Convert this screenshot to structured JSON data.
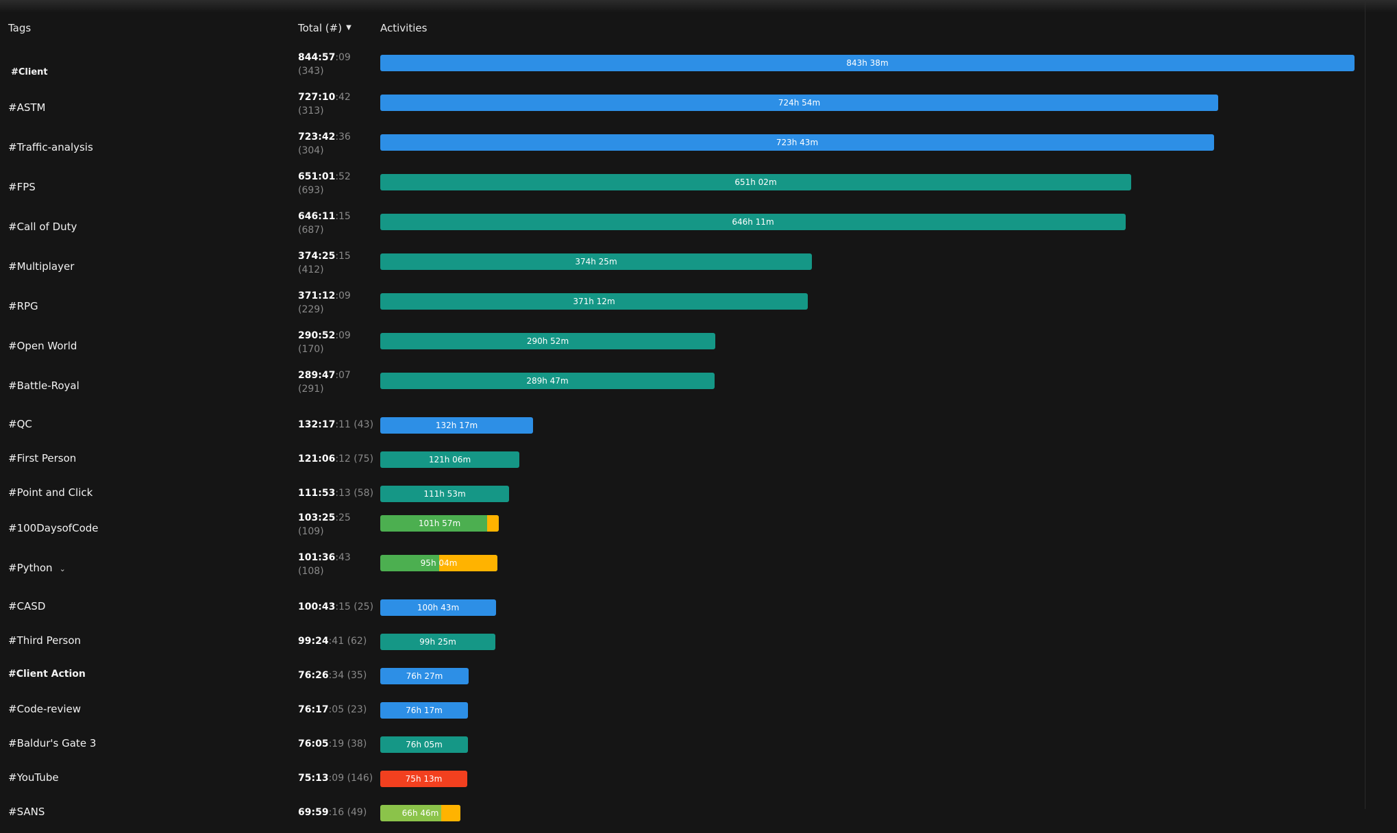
{
  "header": {
    "tags": "Tags",
    "total": "Total (#)",
    "activities": "Activities"
  },
  "colors": {
    "blue": "#2d8fe6",
    "teal": "#159786",
    "green": "#4caf50",
    "lime": "#8bc34a",
    "red": "#f2401f",
    "orange": "#ffb300"
  },
  "rows": [
    {
      "tag": "#Client",
      "hm": "844:57",
      "sec": ":09",
      "count": "(343)",
      "bar": "843h 38m",
      "fraction": 1.0,
      "color": "blue",
      "twoLine": true,
      "redacted": true
    },
    {
      "tag": "#ASTM",
      "hm": "727:10",
      "sec": ":42",
      "count": "(313)",
      "bar": "724h 54m",
      "fraction": 0.86,
      "color": "blue",
      "twoLine": true
    },
    {
      "tag": "#Traffic-analysis",
      "hm": "723:42",
      "sec": ":36",
      "count": "(304)",
      "bar": "723h 43m",
      "fraction": 0.856,
      "color": "blue",
      "twoLine": true
    },
    {
      "tag": "#FPS",
      "hm": "651:01",
      "sec": ":52",
      "count": "(693)",
      "bar": "651h 02m",
      "fraction": 0.771,
      "color": "teal",
      "twoLine": true
    },
    {
      "tag": "#Call of Duty",
      "hm": "646:11",
      "sec": ":15",
      "count": "(687)",
      "bar": "646h 11m",
      "fraction": 0.765,
      "color": "teal",
      "twoLine": true
    },
    {
      "tag": "#Multiplayer",
      "hm": "374:25",
      "sec": ":15",
      "count": "(412)",
      "bar": "374h 25m",
      "fraction": 0.443,
      "color": "teal",
      "twoLine": true
    },
    {
      "tag": "#RPG",
      "hm": "371:12",
      "sec": ":09",
      "count": "(229)",
      "bar": "371h 12m",
      "fraction": 0.439,
      "color": "teal",
      "twoLine": true
    },
    {
      "tag": "#Open World",
      "hm": "290:52",
      "sec": ":09",
      "count": "(170)",
      "bar": "290h 52m",
      "fraction": 0.344,
      "color": "teal",
      "twoLine": true
    },
    {
      "tag": "#Battle-Royal",
      "hm": "289:47",
      "sec": ":07",
      "count": "(291)",
      "bar": "289h 47m",
      "fraction": 0.343,
      "color": "teal",
      "twoLine": true
    },
    {
      "tag": "#QC",
      "hm": "132:17",
      "sec": ":11",
      "count": "(43)",
      "bar": "132h 17m",
      "fraction": 0.157,
      "color": "blue",
      "twoLine": false
    },
    {
      "tag": "#First Person",
      "hm": "121:06",
      "sec": ":12",
      "count": "(75)",
      "bar": "121h 06m",
      "fraction": 0.143,
      "color": "teal",
      "twoLine": false
    },
    {
      "tag": "#Point and Click",
      "hm": "111:53",
      "sec": ":13",
      "count": "(58)",
      "bar": "111h 53m",
      "fraction": 0.132,
      "color": "teal",
      "twoLine": false
    },
    {
      "tag": "#100DaysofCode",
      "hm": "103:25",
      "sec": ":25",
      "count": "(109)",
      "bar": "101h 57m",
      "fraction": 0.122,
      "color": "green",
      "twoLine": true,
      "stripe": "orange",
      "stripeFraction": 0.012
    },
    {
      "tag": "#Python",
      "hm": "101:36",
      "sec": ":43",
      "count": "(108)",
      "bar": "95h 04m",
      "fraction": 0.12,
      "color": "green",
      "twoLine": true,
      "stripe": "orange",
      "stripeFraction": 0.06,
      "chevron": "⌄"
    },
    {
      "tag": "#CASD",
      "hm": "100:43",
      "sec": ":15",
      "count": "(25)",
      "bar": "100h 43m",
      "fraction": 0.119,
      "color": "blue",
      "twoLine": false
    },
    {
      "tag": "#Third Person",
      "hm": "99:24",
      "sec": ":41",
      "count": "(62)",
      "bar": "99h 25m",
      "fraction": 0.118,
      "color": "teal",
      "twoLine": false
    },
    {
      "tag": "#Client Action",
      "hm": "76:26",
      "sec": ":34",
      "count": "(35)",
      "bar": "76h 27m",
      "fraction": 0.091,
      "color": "blue",
      "twoLine": false,
      "bold": true
    },
    {
      "tag": "#Code-review",
      "hm": "76:17",
      "sec": ":05",
      "count": "(23)",
      "bar": "76h 17m",
      "fraction": 0.09,
      "color": "blue",
      "twoLine": false
    },
    {
      "tag": "#Baldur's Gate 3",
      "hm": "76:05",
      "sec": ":19",
      "count": "(38)",
      "bar": "76h 05m",
      "fraction": 0.09,
      "color": "teal",
      "twoLine": false
    },
    {
      "tag": "#YouTube",
      "hm": "75:13",
      "sec": ":09",
      "count": "(146)",
      "bar": "75h 13m",
      "fraction": 0.089,
      "color": "red",
      "twoLine": false
    },
    {
      "tag": "#SANS",
      "hm": "69:59",
      "sec": ":16",
      "count": "(49)",
      "bar": "66h 46m",
      "fraction": 0.082,
      "color": "lime",
      "twoLine": false,
      "stripe": "orange",
      "stripeFraction": 0.02
    }
  ]
}
